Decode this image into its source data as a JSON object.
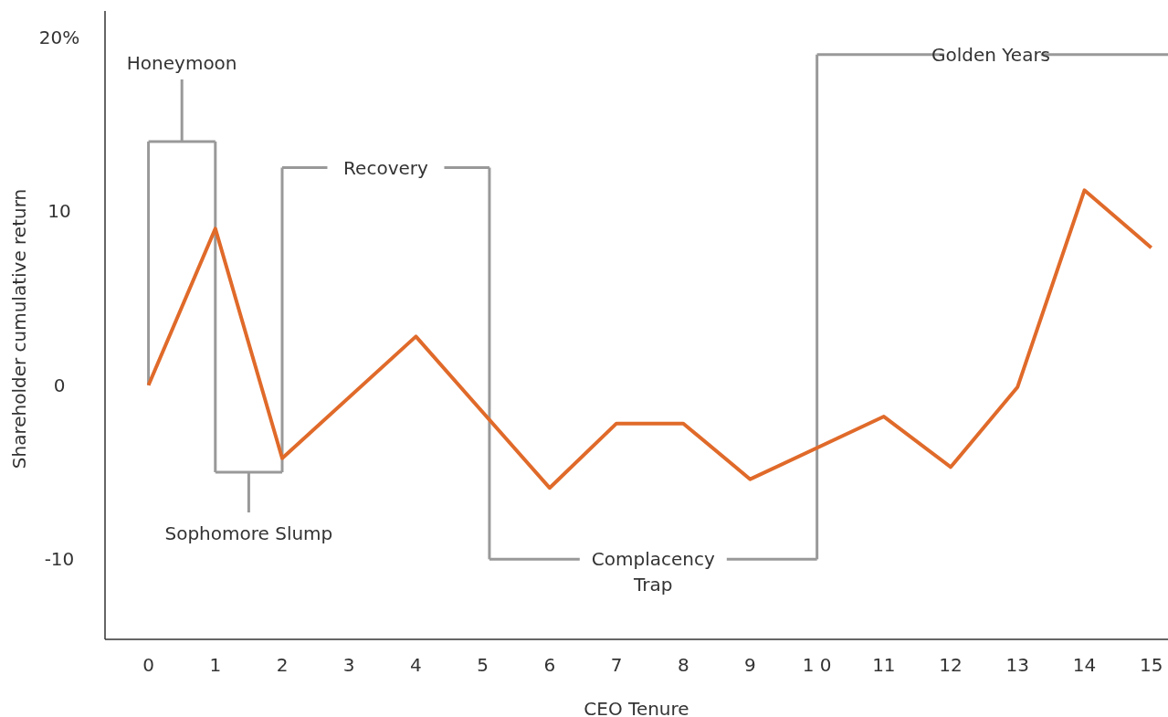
{
  "chart_data": {
    "type": "line",
    "xlabel": "CEO Tenure",
    "ylabel": "Shareholder cumulative return",
    "x": [
      0,
      1,
      2,
      4,
      6,
      7,
      8,
      9,
      11,
      12,
      13,
      14,
      15
    ],
    "series": [
      {
        "color": "#e06a2a",
        "values": [
          0,
          9,
          -4.2,
          2.8,
          -5.9,
          -2.2,
          -2.2,
          -5.4,
          -1.8,
          -4.7,
          -0.1,
          11.2,
          7.9
        ]
      }
    ],
    "xlim": [
      -0.65,
      15.25
    ],
    "xticks": [
      0,
      1,
      2,
      3,
      4,
      5,
      6,
      7,
      8,
      9,
      {
        "value": 10,
        "label": "1 0"
      },
      11,
      12,
      13,
      14,
      15
    ],
    "ylim": [
      -14.6,
      21.5
    ],
    "yticks": [
      {
        "value": 20,
        "label": "20%"
      },
      10,
      0,
      -10
    ],
    "annotations": [
      "Honeymoon",
      "Sophomore Slump",
      "Recovery",
      "Complacency Trap",
      "Golden Years"
    ],
    "marker": "none",
    "line_style": "solid"
  }
}
